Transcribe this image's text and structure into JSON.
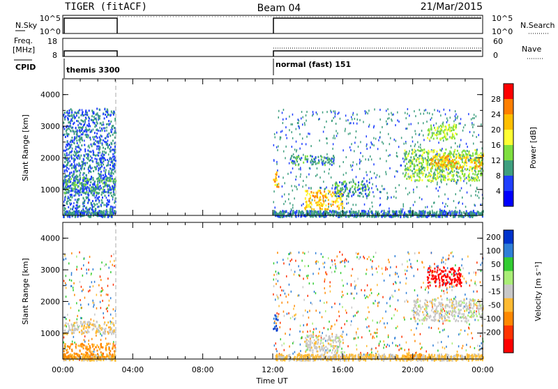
{
  "header": {
    "left_title": "TIGER (fitACF)",
    "center_title": "Beam 04",
    "date": "21/Mar/2015"
  },
  "status_panels": {
    "nsky_label": "N.Sky",
    "nsky_ticks": [
      "10^5",
      "10^0"
    ],
    "nsearch_label": "N.Search",
    "nsearch_ticks": [
      "10^5",
      "10^0"
    ],
    "freq_label_line1": "Freq.",
    "freq_label_line2": "[MHz]",
    "freq_ticks": [
      "18",
      "8"
    ],
    "nave_label": "Nave",
    "nave_ticks": [
      "60",
      "0"
    ],
    "cpid_label": "CPID",
    "cpid_segments": [
      {
        "name": "themis 3300",
        "start_hour": 0,
        "end_hour": 3
      },
      {
        "name": "normal (fast) 151",
        "start_hour": 12,
        "end_hour": 24
      }
    ]
  },
  "xaxis": {
    "title": "Time UT",
    "ticks": [
      "00:00",
      "04:00",
      "08:00",
      "12:00",
      "16:00",
      "20:00",
      "00:00"
    ]
  },
  "power_panel": {
    "ylabel": "Slant Range [km]",
    "yticks": [
      "4000",
      "3000",
      "2000",
      "1000"
    ],
    "colorbar_label": "Power [dB]",
    "colorbar_ticks": [
      "28",
      "24",
      "20",
      "16",
      "12",
      "8",
      "4"
    ],
    "colorbar_colors": [
      "#ff0000",
      "#ff7f00",
      "#ffbf00",
      "#ffff33",
      "#7fdf3f",
      "#3f9f7f",
      "#1f3fff",
      "#0000ff"
    ]
  },
  "velocity_panel": {
    "ylabel": "Slant Range [km]",
    "yticks": [
      "4000",
      "3000",
      "2000",
      "1000"
    ],
    "colorbar_label": "Velocity [m s⁻¹]",
    "colorbar_ticks": [
      "200",
      "100",
      "50",
      "15",
      "-15",
      "-50",
      "-100",
      "-200"
    ],
    "colorbar_colors": [
      "#0033cc",
      "#2f7fd7",
      "#33cc33",
      "#aaee77",
      "#c8c8c8",
      "#ffbb33",
      "#ff8800",
      "#ff3300",
      "#ff0000"
    ]
  },
  "chart_data": {
    "type": "heatmap",
    "title": "Beam 04",
    "xlabel": "Time UT",
    "ylabel": "Slant Range [km]",
    "xlim_hours": [
      0,
      24
    ],
    "ylim_km": [
      180,
      4500
    ],
    "data_intervals_hours": [
      [
        0,
        3
      ],
      [
        12,
        24
      ]
    ],
    "power_bands": [
      {
        "t0": 0.0,
        "t1": 3.0,
        "r0": 300,
        "r1": 3600,
        "level_db": 6
      },
      {
        "t0": 0.0,
        "t1": 3.0,
        "r0": 900,
        "r1": 1400,
        "level_db": 8
      },
      {
        "t0": 12.0,
        "t1": 12.3,
        "r0": 1100,
        "r1": 1600,
        "level_db": 20
      },
      {
        "t0": 13.0,
        "t1": 15.5,
        "r0": 1800,
        "r1": 2100,
        "level_db": 8
      },
      {
        "t0": 13.8,
        "t1": 16.0,
        "r0": 400,
        "r1": 1000,
        "level_db": 20
      },
      {
        "t0": 15.5,
        "t1": 17.5,
        "r0": 800,
        "r1": 1300,
        "level_db": 8
      },
      {
        "t0": 19.5,
        "t1": 24.0,
        "r0": 1300,
        "r1": 2300,
        "level_db": 12
      },
      {
        "t0": 21.0,
        "t1": 24.0,
        "r0": 1700,
        "r1": 2100,
        "level_db": 20
      },
      {
        "t0": 20.8,
        "t1": 22.5,
        "r0": 2600,
        "r1": 3100,
        "level_db": 14
      }
    ],
    "velocity_bands": [
      {
        "t0": 0.0,
        "t1": 3.0,
        "r0": 1000,
        "r1": 1400,
        "velocity": -10
      },
      {
        "t0": 0.0,
        "t1": 3.0,
        "r0": 200,
        "r1": 700,
        "velocity": -60
      },
      {
        "t0": 12.0,
        "t1": 12.3,
        "r0": 1100,
        "r1": 1600,
        "velocity": 150
      },
      {
        "t0": 13.8,
        "t1": 16.0,
        "r0": 400,
        "r1": 1000,
        "velocity": 0
      },
      {
        "t0": 20.8,
        "t1": 22.8,
        "r0": 2500,
        "r1": 3100,
        "velocity": -200
      },
      {
        "t0": 20.0,
        "t1": 24.0,
        "r0": 1400,
        "r1": 2100,
        "velocity": 0
      },
      {
        "t0": 19.5,
        "t1": 20.5,
        "r0": 200,
        "r1": 400,
        "velocity": -60
      }
    ]
  }
}
